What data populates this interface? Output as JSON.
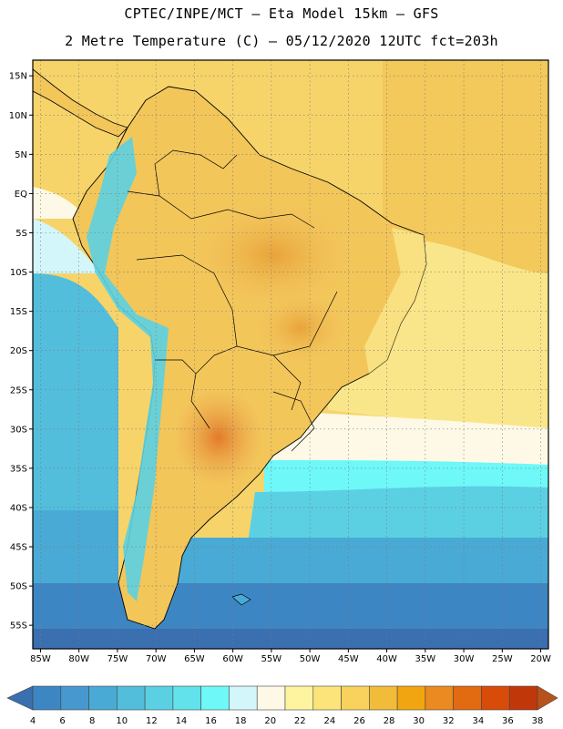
{
  "header": {
    "line1": "CPTEC/INPE/MCT –  Eta Model 15km – GFS",
    "line2": "2 Metre Temperature (C) – 05/12/2020 12UTC fct=203h"
  },
  "map": {
    "lat_labels": [
      "15N",
      "10N",
      "5N",
      "EQ",
      "5S",
      "10S",
      "15S",
      "20S",
      "25S",
      "30S",
      "35S",
      "40S",
      "45S",
      "50S",
      "55S"
    ],
    "lon_labels": [
      "85W",
      "80W",
      "75W",
      "70W",
      "65W",
      "60W",
      "55W",
      "50W",
      "45W",
      "40W",
      "35W",
      "30W",
      "25W",
      "20W"
    ],
    "extent": {
      "lon_min": -86,
      "lon_max": -19,
      "lat_min": -58,
      "lat_max": 17
    }
  },
  "colorbar": {
    "labels": [
      "4",
      "6",
      "8",
      "10",
      "12",
      "14",
      "16",
      "18",
      "20",
      "22",
      "24",
      "26",
      "28",
      "30",
      "32",
      "34",
      "36",
      "38"
    ],
    "colors": [
      "#3a6fb0",
      "#3d86c4",
      "#4798cf",
      "#49aad6",
      "#52bedc",
      "#5bd0e2",
      "#62e2ea",
      "#6ef8f8",
      "#d3f6fb",
      "#fef9e6",
      "#fef4a0",
      "#fde47a",
      "#f8d25c",
      "#f1bc3a",
      "#f1a510",
      "#ea8a20",
      "#e26a10",
      "#d84c0a",
      "#c0380a",
      "#b9521a"
    ]
  }
}
